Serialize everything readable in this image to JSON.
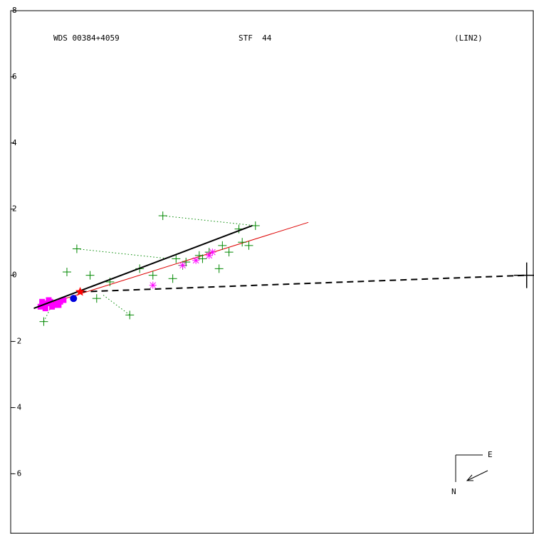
{
  "header": {
    "wds": "WDS 00384+4059",
    "stf": "STF  44",
    "fit": "(LIN2)"
  },
  "chart_data": {
    "type": "scatter",
    "title": "",
    "xlabel": "",
    "ylabel": "",
    "xlim": [
      -1.4,
      14.4
    ],
    "ylim": [
      -7.8,
      8.0
    ],
    "y_ticks": [
      -6,
      -4,
      -2,
      0,
      2,
      4,
      6,
      8
    ],
    "grid": false,
    "colors": {
      "frame": "#000000",
      "green": "#008800",
      "magenta": "#ff00ff",
      "orbit": "#000000",
      "fit_line": "#dd0000",
      "star": "#ff0000",
      "blue": "#0000dd"
    },
    "primary": {
      "x": 14.2,
      "y": 0.0
    },
    "current_position": {
      "x": 0.7,
      "y": -0.5
    },
    "solution_line": {
      "x": [
        -0.7,
        5.9
      ],
      "y": [
        -1.0,
        1.5
      ]
    },
    "linear_fit_line": {
      "x": [
        -0.7,
        7.6
      ],
      "y": [
        -1.0,
        1.6
      ]
    },
    "primary_connector": {
      "x": [
        0.7,
        14.2
      ],
      "y": [
        -0.5,
        0.0
      ]
    },
    "green_points": {
      "x": [
        2.2,
        0.6,
        1.0,
        1.6,
        1.2,
        3.2,
        6.0,
        3.6,
        4.3,
        5.0,
        5.5,
        4.6,
        3.8,
        2.9,
        2.5,
        3.9,
        4.9,
        5.2,
        4.4,
        3.5,
        5.8,
        -0.4,
        0.3,
        5.6
      ],
      "y": [
        -1.2,
        0.8,
        0.0,
        -0.2,
        -0.7,
        1.8,
        1.5,
        0.5,
        0.6,
        0.9,
        1.4,
        0.7,
        0.3,
        0.0,
        0.2,
        0.4,
        0.2,
        0.7,
        0.5,
        -0.1,
        0.9,
        -1.4,
        0.1,
        1.0
      ]
    },
    "dotted_links": [
      {
        "from": [
          3.2,
          1.8
        ],
        "to": [
          6.0,
          1.5
        ]
      },
      {
        "from": [
          0.6,
          0.8
        ],
        "to": [
          3.4,
          0.5
        ]
      },
      {
        "from": [
          2.2,
          -1.2
        ],
        "to": [
          1.4,
          -0.6
        ]
      },
      {
        "from": [
          -0.4,
          -1.4
        ],
        "to": [
          -0.2,
          -1.0
        ]
      }
    ],
    "magenta_points": {
      "x": [
        2.9,
        4.7,
        4.6,
        3.8,
        4.2
      ],
      "y": [
        -0.3,
        0.7,
        0.6,
        0.3,
        0.45
      ]
    },
    "magenta_cluster": {
      "x": [
        -0.5,
        -0.4,
        -0.3,
        -0.2,
        -0.1,
        0.0,
        0.1,
        0.2,
        -0.35,
        -0.15,
        0.05,
        -0.45,
        -0.25
      ],
      "y": [
        -0.95,
        -0.9,
        -0.85,
        -0.8,
        -0.9,
        -0.85,
        -0.8,
        -0.75,
        -1.0,
        -0.95,
        -0.9,
        -0.8,
        -0.75
      ]
    },
    "blue_point": {
      "x": 0.5,
      "y": -0.7
    }
  },
  "compass": {
    "east": "E",
    "north": "N"
  }
}
